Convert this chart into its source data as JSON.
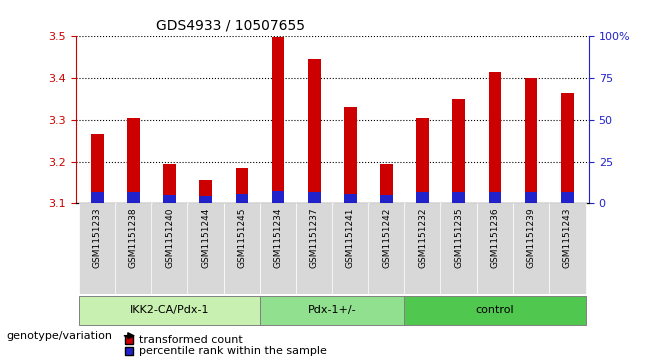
{
  "title": "GDS4933 / 10507655",
  "samples": [
    "GSM1151233",
    "GSM1151238",
    "GSM1151240",
    "GSM1151244",
    "GSM1151245",
    "GSM1151234",
    "GSM1151237",
    "GSM1151241",
    "GSM1151242",
    "GSM1151232",
    "GSM1151235",
    "GSM1151236",
    "GSM1151239",
    "GSM1151243"
  ],
  "red_values": [
    3.265,
    3.305,
    3.195,
    3.155,
    3.185,
    3.498,
    3.445,
    3.33,
    3.195,
    3.305,
    3.35,
    3.415,
    3.4,
    3.365
  ],
  "blue_values": [
    0.027,
    0.027,
    0.02,
    0.018,
    0.022,
    0.03,
    0.028,
    0.023,
    0.02,
    0.027,
    0.026,
    0.028,
    0.028,
    0.027
  ],
  "base": 3.1,
  "ylim": [
    3.1,
    3.5
  ],
  "yticks": [
    3.1,
    3.2,
    3.3,
    3.4,
    3.5
  ],
  "y2ticks_pct": [
    0,
    25,
    50,
    75,
    100
  ],
  "y2labels": [
    "0",
    "25",
    "50",
    "75",
    "100%"
  ],
  "groups": [
    {
      "label": "IKK2-CA/Pdx-1",
      "start": 0,
      "end": 5,
      "color": "#c8f0b0"
    },
    {
      "label": "Pdx-1+/-",
      "start": 5,
      "end": 9,
      "color": "#90e090"
    },
    {
      "label": "control",
      "start": 9,
      "end": 14,
      "color": "#50c850"
    }
  ],
  "bar_color_red": "#cc0000",
  "bar_color_blue": "#2222cc",
  "bar_width": 0.35,
  "legend_red": "transformed count",
  "legend_blue": "percentile rank within the sample",
  "xlabel_left": "genotype/variation",
  "label_color_left": "#cc0000",
  "label_color_right": "#2222cc",
  "tick_bg_color": "#d8d8d8",
  "plot_bg": "#ffffff"
}
